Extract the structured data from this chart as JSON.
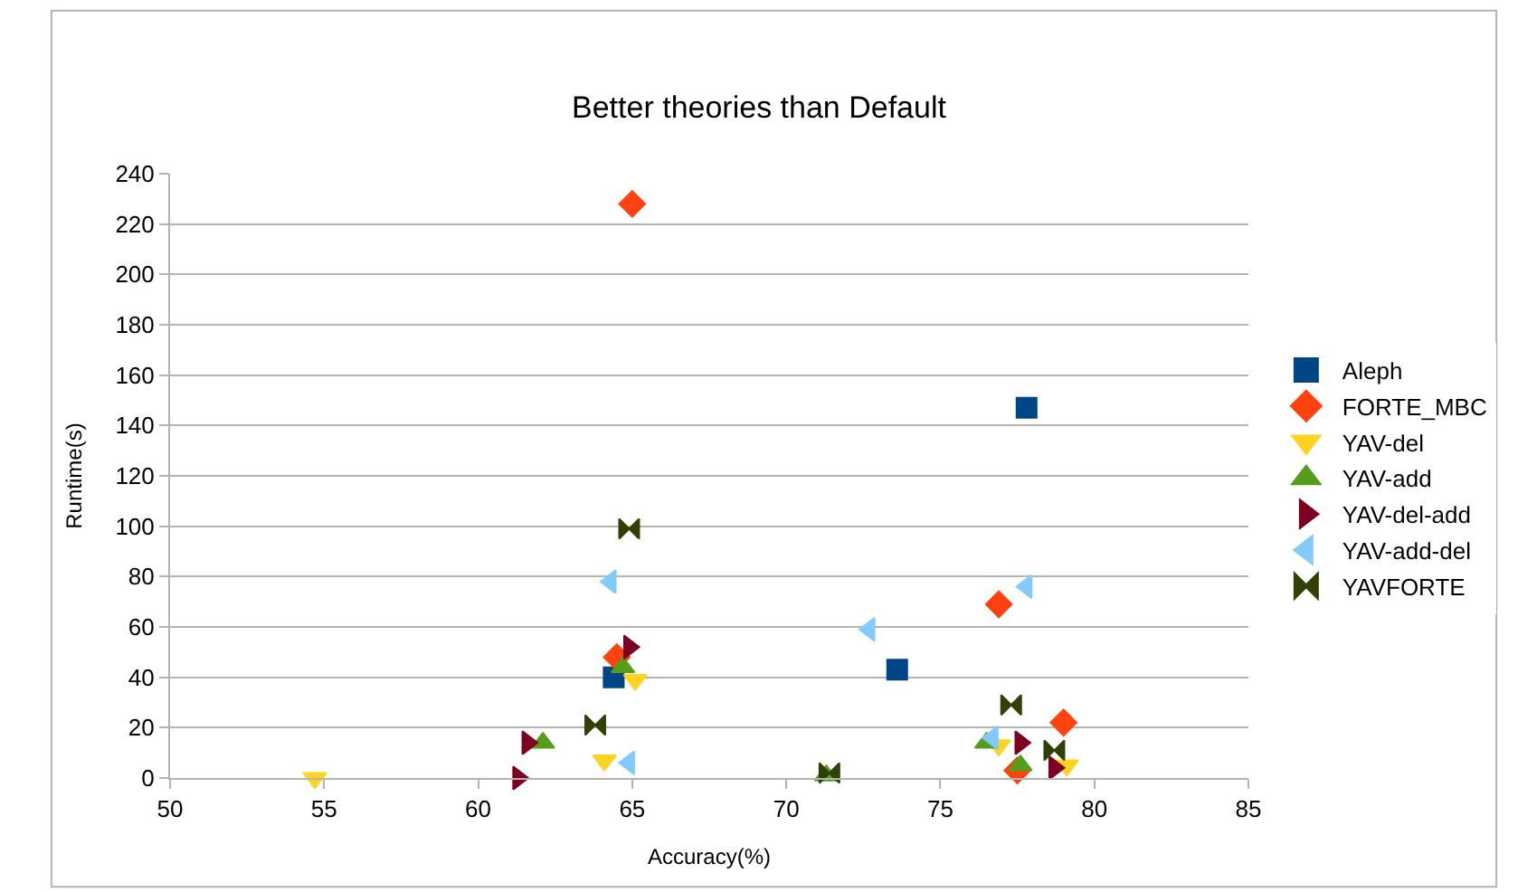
{
  "chart_data": {
    "type": "scatter",
    "title": "Better theories than Default",
    "xlabel": "Accuracy(%)",
    "ylabel": "Runtime(s)",
    "xlim": [
      50,
      85
    ],
    "xticks": [
      50,
      55,
      60,
      65,
      70,
      75,
      80,
      85
    ],
    "ylim": [
      0,
      240
    ],
    "yticks": [
      0,
      20,
      40,
      60,
      80,
      100,
      120,
      140,
      160,
      180,
      200,
      220,
      240
    ],
    "grid": "y",
    "legend": "right",
    "series": [
      {
        "name": "Aleph",
        "color": "#004586",
        "marker": "square",
        "x": [
          64.4,
          73.6,
          77.8
        ],
        "values": [
          40,
          43,
          147
        ]
      },
      {
        "name": "FORTE_MBC",
        "color": "#ff420e",
        "marker": "diamond",
        "x": [
          65.0,
          64.5,
          76.9,
          79.0,
          77.5
        ],
        "values": [
          228,
          48,
          69,
          22,
          3
        ]
      },
      {
        "name": "YAV-del",
        "color": "#ffd320",
        "marker": "triangle-down",
        "x": [
          65.1,
          64.1,
          54.7,
          76.9,
          79.1
        ],
        "values": [
          39,
          7,
          0,
          13,
          5
        ]
      },
      {
        "name": "YAV-add",
        "color": "#579d1c",
        "marker": "triangle-up",
        "x": [
          64.7,
          62.1,
          71.3,
          76.5,
          77.6
        ],
        "values": [
          44,
          14,
          1,
          14,
          5
        ]
      },
      {
        "name": "YAV-del-add",
        "color": "#7e0021",
        "marker": "triangle-right",
        "x": [
          64.9,
          61.6,
          61.3,
          77.6,
          78.7
        ],
        "values": [
          52,
          14,
          0,
          14,
          4
        ]
      },
      {
        "name": "YAV-add-del",
        "color": "#83caff",
        "marker": "triangle-left",
        "x": [
          64.3,
          64.9,
          72.7,
          77.8,
          76.7
        ],
        "values": [
          78,
          6,
          59,
          76,
          16
        ]
      },
      {
        "name": "YAVFORTE",
        "color": "#314004",
        "x": [
          64.9,
          63.8,
          71.4,
          77.3,
          78.7
        ],
        "values": [
          99,
          21,
          2,
          29,
          11
        ]
      }
    ]
  }
}
